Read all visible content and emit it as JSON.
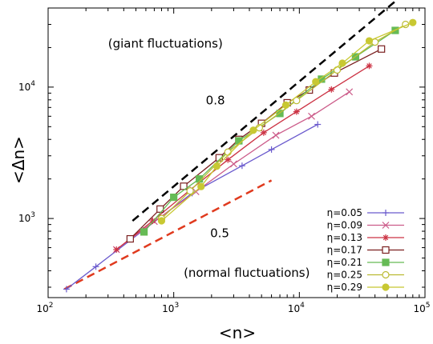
{
  "chart_data": {
    "type": "line",
    "xlabel": "<n>",
    "ylabel": "<Δn>",
    "xscale": "log",
    "yscale": "log",
    "xlim": [
      100,
      100000
    ],
    "ylim": [
      250,
      40000
    ],
    "x_major_ticks": [
      {
        "value": 100,
        "label": "10",
        "exp": "2"
      },
      {
        "value": 1000,
        "label": "10",
        "exp": "3"
      },
      {
        "value": 10000,
        "label": "10",
        "exp": "4"
      },
      {
        "value": 100000,
        "label": "10",
        "exp": "5"
      }
    ],
    "y_major_ticks": [
      {
        "value": 1000,
        "label": "10",
        "exp": "3"
      },
      {
        "value": 10000,
        "label": "10",
        "exp": "4"
      }
    ],
    "grid": false,
    "legend_position": "bottom-right",
    "annotations": [
      {
        "text": "(giant fluctuations)",
        "x": 300,
        "y": 20000
      },
      {
        "text": "0.8",
        "x": 1800,
        "y": 7400
      },
      {
        "text": "0.5",
        "x": 1950,
        "y": 720
      },
      {
        "text": "(normal fluctuations)",
        "x": 1200,
        "y": 360
      }
    ],
    "reference_lines": [
      {
        "name": "slope-0.8",
        "slope": 0.8,
        "x": [
          470,
          58000
        ],
        "y": [
          960,
          45000
        ],
        "color": "#000000",
        "dash": "dashed"
      },
      {
        "name": "slope-0.5",
        "slope": 0.5,
        "x": [
          135,
          6000
        ],
        "y": [
          290,
          1950
        ],
        "color": "#e03a1e",
        "dash": "dashed"
      }
    ],
    "series": [
      {
        "name": "η=0.05",
        "color": "#6a5acd",
        "marker": "plus",
        "filled": false,
        "points": [
          [
            140,
            290
          ],
          [
            240,
            430
          ],
          [
            570,
            810
          ],
          [
            1400,
            1560
          ],
          [
            3500,
            2520
          ],
          [
            6000,
            3350
          ],
          [
            14000,
            5200
          ]
        ]
      },
      {
        "name": "η=0.09",
        "color": "#cc5c8a",
        "marker": "x",
        "filled": false,
        "points": [
          [
            350,
            580
          ],
          [
            700,
            950
          ],
          [
            1500,
            1600
          ],
          [
            3000,
            2600
          ],
          [
            6500,
            4300
          ],
          [
            12500,
            6000
          ],
          [
            25000,
            9200
          ]
        ]
      },
      {
        "name": "η=0.13",
        "color": "#cc3344",
        "marker": "star",
        "filled": false,
        "points": [
          [
            350,
            580
          ],
          [
            680,
            960
          ],
          [
            1350,
            1650
          ],
          [
            2700,
            2800
          ],
          [
            5200,
            4500
          ],
          [
            9500,
            6500
          ],
          [
            18000,
            9600
          ],
          [
            36000,
            14500
          ]
        ]
      },
      {
        "name": "η=0.17",
        "color": "#7a1f1f",
        "marker": "square",
        "filled": false,
        "points": [
          [
            450,
            700
          ],
          [
            780,
            1180
          ],
          [
            1200,
            1760
          ],
          [
            2300,
            2900
          ],
          [
            3300,
            4000
          ],
          [
            5000,
            5300
          ],
          [
            8000,
            7600
          ],
          [
            12000,
            9500
          ],
          [
            19000,
            12800
          ],
          [
            45000,
            19500
          ]
        ]
      },
      {
        "name": "η=0.21",
        "color": "#66bb55",
        "marker": "square",
        "filled": true,
        "points": [
          [
            580,
            790
          ],
          [
            1000,
            1450
          ],
          [
            1600,
            2000
          ],
          [
            3300,
            3900
          ],
          [
            7000,
            6300
          ],
          [
            15000,
            11500
          ],
          [
            28000,
            17000
          ],
          [
            58000,
            27000
          ]
        ]
      },
      {
        "name": "η=0.25",
        "color": "#bbbb33",
        "marker": "circle",
        "filled": false,
        "points": [
          [
            800,
            1000
          ],
          [
            1350,
            1620
          ],
          [
            2700,
            3200
          ],
          [
            4800,
            4900
          ],
          [
            9500,
            7900
          ],
          [
            20000,
            13500
          ],
          [
            40000,
            22000
          ],
          [
            70000,
            30000
          ]
        ]
      },
      {
        "name": "η=0.29",
        "color": "#c8c832",
        "marker": "circle",
        "filled": true,
        "points": [
          [
            800,
            960
          ],
          [
            1650,
            1750
          ],
          [
            2200,
            2500
          ],
          [
            4300,
            4700
          ],
          [
            7800,
            7300
          ],
          [
            13500,
            11000
          ],
          [
            22000,
            15200
          ],
          [
            36000,
            22500
          ],
          [
            80000,
            31000
          ]
        ]
      }
    ]
  }
}
